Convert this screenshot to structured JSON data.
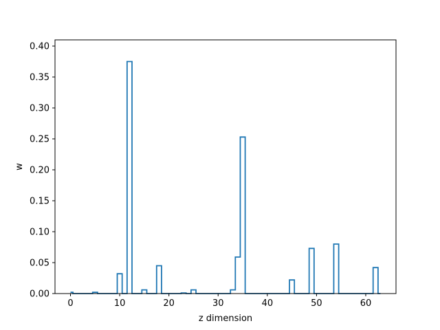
{
  "chart_data": {
    "type": "line",
    "style": "step-histogram",
    "title": "",
    "xlabel": "z dimension",
    "ylabel": "w",
    "xlim": [
      -3.15,
      66.15
    ],
    "ylim": [
      0,
      0.41
    ],
    "x_ticks": [
      0,
      10,
      20,
      30,
      40,
      50,
      60
    ],
    "y_ticks": [
      0.0,
      0.05,
      0.1,
      0.15,
      0.2,
      0.25,
      0.3,
      0.35,
      0.4
    ],
    "x_tick_labels": [
      "0",
      "10",
      "20",
      "30",
      "40",
      "50",
      "60"
    ],
    "y_tick_labels": [
      "0.00",
      "0.05",
      "0.10",
      "0.15",
      "0.20",
      "0.25",
      "0.30",
      "0.35",
      "0.40"
    ],
    "grid": false,
    "color": "#1f77b4",
    "series": [
      {
        "x": [
          0,
          1,
          2,
          3,
          4,
          5,
          6,
          7,
          8,
          9,
          10,
          11,
          12,
          13,
          14,
          15,
          16,
          17,
          18,
          19,
          20,
          21,
          22,
          23,
          24,
          25,
          26,
          27,
          28,
          29,
          30,
          31,
          32,
          33,
          34,
          35,
          36,
          37,
          38,
          39,
          40,
          41,
          42,
          43,
          44,
          45,
          46,
          47,
          48,
          49,
          50,
          51,
          52,
          53,
          54,
          55,
          56,
          57,
          58,
          59,
          60,
          61,
          62,
          63
        ],
        "values": [
          0.002,
          0,
          0,
          0,
          0,
          0.002,
          0,
          0,
          0,
          0,
          0.032,
          0,
          0.375,
          0,
          0,
          0.006,
          0,
          0,
          0.045,
          0,
          0,
          0,
          0,
          0.001,
          0,
          0.006,
          0,
          0,
          0,
          0,
          0,
          0,
          0,
          0.006,
          0.059,
          0.253,
          0,
          0,
          0,
          0,
          0,
          0,
          0,
          0,
          0,
          0.022,
          0,
          0,
          0,
          0.073,
          0,
          0,
          0,
          0,
          0.08,
          0,
          0,
          0,
          0,
          0,
          0,
          0,
          0.042,
          0
        ]
      }
    ]
  }
}
